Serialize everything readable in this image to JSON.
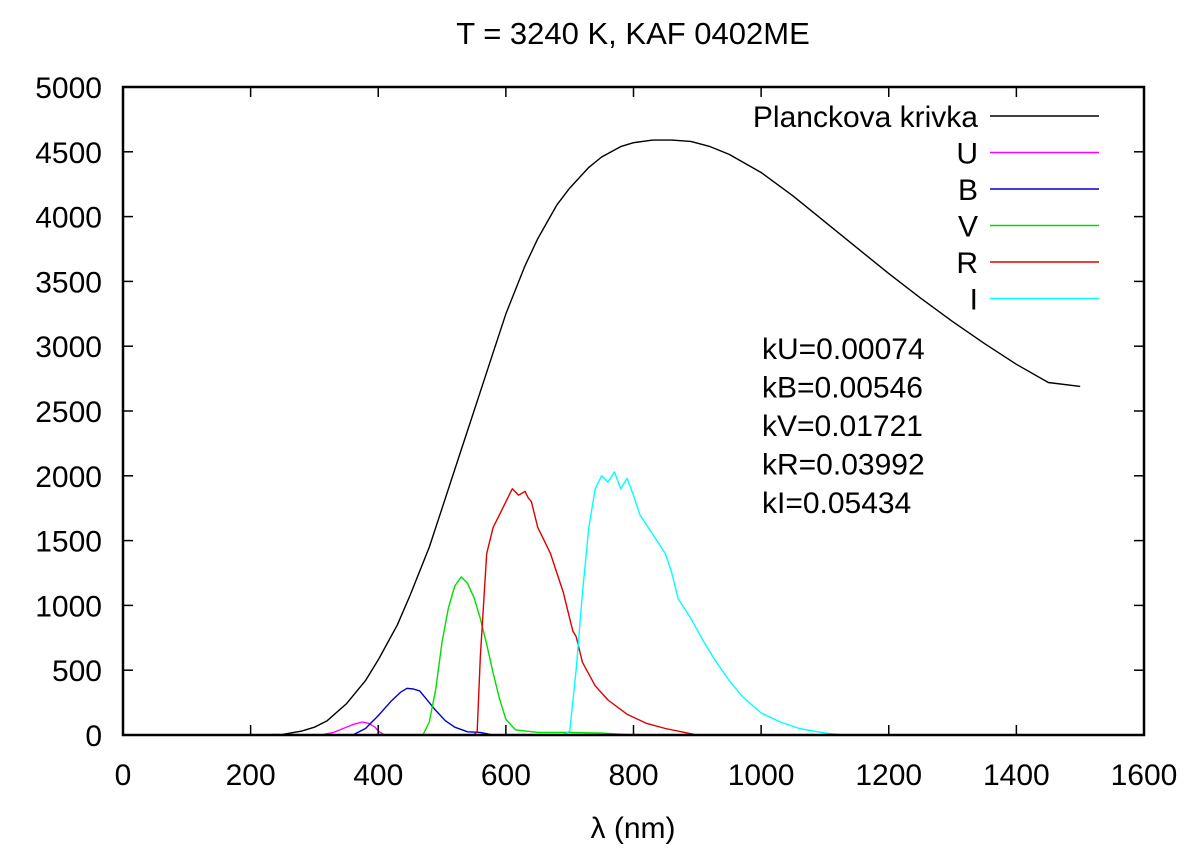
{
  "chart_data": {
    "type": "line",
    "title": "T = 3240 K, KAF 0402ME",
    "xlabel": "λ (nm)",
    "ylabel": "",
    "xlim": [
      0,
      1600
    ],
    "ylim": [
      0,
      5000
    ],
    "xticks": [
      0,
      200,
      400,
      600,
      800,
      1000,
      1200,
      1400,
      1600
    ],
    "yticks": [
      0,
      500,
      1000,
      1500,
      2000,
      2500,
      3000,
      3500,
      4000,
      4500,
      5000
    ],
    "grid": false,
    "legend_position": "top-right",
    "series": [
      {
        "name": "Planckova krivka",
        "color": "#000000",
        "x": [
          200,
          250,
          280,
          300,
          320,
          350,
          380,
          400,
          430,
          450,
          480,
          500,
          530,
          550,
          580,
          600,
          630,
          650,
          680,
          700,
          730,
          750,
          780,
          800,
          830,
          860,
          890,
          920,
          950,
          1000,
          1050,
          1100,
          1150,
          1200,
          1250,
          1300,
          1350,
          1400,
          1450,
          1500
        ],
        "y": [
          0,
          5,
          30,
          60,
          110,
          240,
          420,
          580,
          850,
          1080,
          1450,
          1750,
          2200,
          2500,
          2950,
          3250,
          3620,
          3830,
          4090,
          4220,
          4380,
          4460,
          4540,
          4570,
          4590,
          4590,
          4580,
          4540,
          4480,
          4340,
          4160,
          3960,
          3760,
          3560,
          3370,
          3190,
          3020,
          2860,
          2720,
          2690
        ]
      },
      {
        "name": "U",
        "color": "#ff00ff",
        "x": [
          310,
          330,
          345,
          360,
          375,
          385,
          395,
          400,
          410
        ],
        "y": [
          0,
          20,
          50,
          80,
          100,
          90,
          60,
          30,
          0
        ]
      },
      {
        "name": "B",
        "color": "#0000cc",
        "x": [
          360,
          380,
          400,
          420,
          435,
          445,
          455,
          465,
          475,
          490,
          505,
          520,
          540,
          560,
          580
        ],
        "y": [
          0,
          50,
          150,
          260,
          330,
          360,
          355,
          340,
          280,
          190,
          110,
          60,
          25,
          20,
          0
        ]
      },
      {
        "name": "V",
        "color": "#00dd00",
        "x": [
          470,
          480,
          490,
          500,
          510,
          520,
          530,
          540,
          550,
          560,
          570,
          580,
          590,
          600,
          615,
          650,
          700,
          750,
          800
        ],
        "y": [
          0,
          100,
          350,
          720,
          980,
          1150,
          1220,
          1170,
          1060,
          900,
          700,
          480,
          280,
          120,
          40,
          20,
          20,
          15,
          0
        ]
      },
      {
        "name": "R",
        "color": "#dd0000",
        "x": [
          550,
          555,
          560,
          570,
          580,
          590,
          600,
          610,
          620,
          630,
          635,
          640,
          650,
          660,
          670,
          680,
          690,
          700,
          705,
          710,
          720,
          740,
          760,
          790,
          820,
          850,
          880,
          900
        ],
        "y": [
          0,
          30,
          600,
          1400,
          1600,
          1700,
          1800,
          1900,
          1850,
          1880,
          1830,
          1800,
          1600,
          1500,
          1400,
          1250,
          1100,
          900,
          800,
          760,
          560,
          380,
          270,
          160,
          90,
          50,
          20,
          0
        ]
      },
      {
        "name": "I",
        "color": "#00ffff",
        "x": [
          690,
          700,
          710,
          720,
          730,
          740,
          750,
          760,
          770,
          780,
          790,
          800,
          810,
          830,
          850,
          860,
          870,
          890,
          910,
          930,
          950,
          970,
          1000,
          1030,
          1060,
          1100,
          1130
        ],
        "y": [
          0,
          30,
          500,
          1100,
          1600,
          1900,
          2000,
          1950,
          2030,
          1900,
          1980,
          1850,
          1700,
          1550,
          1400,
          1250,
          1050,
          900,
          720,
          560,
          420,
          300,
          170,
          100,
          50,
          15,
          0
        ]
      }
    ],
    "annotations": [
      "kU=0.00074",
      "kB=0.00546",
      "kV=0.01721",
      "kR=0.03992",
      "kI=0.05434"
    ]
  }
}
